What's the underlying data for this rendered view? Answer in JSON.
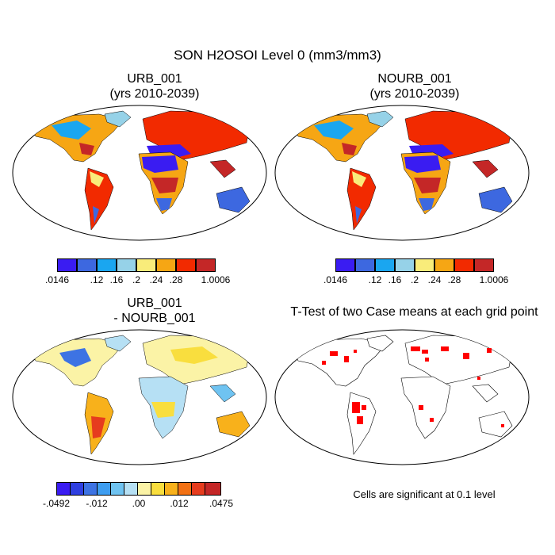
{
  "main_title": "SON H2OSOI Level 0 (mm3/mm3)",
  "panels": [
    {
      "title_line1": "URB_001",
      "title_line2": "(yrs 2010-2039)"
    },
    {
      "title_line1": "NOURB_001",
      "title_line2": "(yrs 2010-2039)"
    },
    {
      "title_line1": "URB_001",
      "title_line2": "- NOURB_001"
    },
    {
      "title_line1": "T-Test of two Case means at each grid point",
      "title_line2": ""
    }
  ],
  "legend_abs": {
    "colors": [
      "#3a1cf2",
      "#3d68e0",
      "#1aa6f0",
      "#96d2e8",
      "#f9ec7a",
      "#f6a614",
      "#f22a00",
      "#c42727"
    ],
    "ticks": [
      ".0146",
      ".12",
      ".16",
      ".2",
      ".24",
      ".28",
      "1.0006"
    ]
  },
  "legend_diff": {
    "colors": [
      "#3a1cf2",
      "#2f3fe0",
      "#3d73e3",
      "#3e9df0",
      "#6fc3f1",
      "#b6e0f4",
      "#fbf3a6",
      "#f9de3e",
      "#f8b11b",
      "#f27114",
      "#e63c1e",
      "#c42727"
    ],
    "ticks": [
      "-.0492",
      "-.012",
      ".00",
      ".012",
      ".0475"
    ]
  },
  "ttest_note": "Cells are significant at 0.1 level"
}
